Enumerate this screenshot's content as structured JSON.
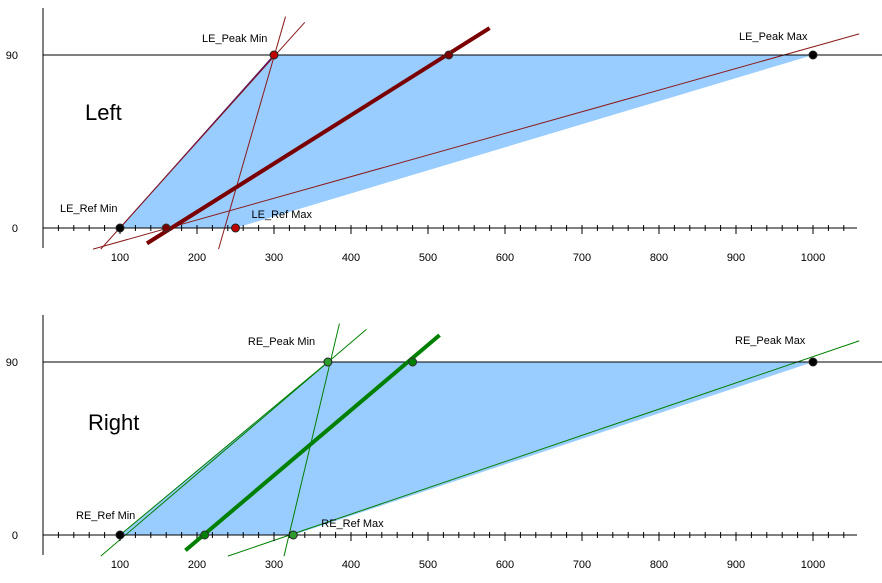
{
  "chart_data": [
    {
      "type": "area",
      "title": "Left",
      "xlim": [
        0,
        1050
      ],
      "ylim": [
        0,
        90
      ],
      "x_ticks": [
        100,
        200,
        300,
        400,
        500,
        600,
        700,
        800,
        900,
        1000
      ],
      "y_ticks": [
        0,
        90
      ],
      "colors": {
        "fill": "#99ccff",
        "line": "#7a0000",
        "thin": "#8b1a1a",
        "edge": "#4b0066"
      },
      "points": [
        {
          "label": "LE_Ref Min",
          "x": 100,
          "y": 0
        },
        {
          "label": "LE_Ref Max",
          "x": 250,
          "y": 0
        },
        {
          "label": "LE_Peak Min",
          "x": 300,
          "y": 90
        },
        {
          "label": "LE_Peak Max",
          "x": 1000,
          "y": 90
        }
      ],
      "trend_line": {
        "from": [
          135,
          -8
        ],
        "to": [
          580,
          104
        ],
        "markers": [
          [
            160,
            0
          ],
          [
            527,
            90
          ]
        ]
      },
      "thin_lines": [
        {
          "from": [
            75,
            -11
          ],
          "to": [
            340,
            107
          ]
        },
        {
          "from": [
            65,
            -11
          ],
          "to": [
            1060,
            101
          ]
        },
        {
          "from": [
            228,
            -11
          ],
          "to": [
            315,
            110
          ]
        }
      ]
    },
    {
      "type": "area",
      "title": "Right",
      "xlim": [
        0,
        1050
      ],
      "ylim": [
        0,
        90
      ],
      "x_ticks": [
        100,
        200,
        300,
        400,
        500,
        600,
        700,
        800,
        900,
        1000
      ],
      "y_ticks": [
        0,
        90
      ],
      "colors": {
        "fill": "#99ccff",
        "line": "#008000",
        "thin": "#008000",
        "edge": "#008000"
      },
      "points": [
        {
          "label": "RE_Ref Min",
          "x": 100,
          "y": 0
        },
        {
          "label": "RE_Ref Max",
          "x": 325,
          "y": 0
        },
        {
          "label": "RE_Peak Min",
          "x": 370,
          "y": 90
        },
        {
          "label": "RE_Peak Max",
          "x": 1000,
          "y": 90
        }
      ],
      "trend_line": {
        "from": [
          185,
          -8
        ],
        "to": [
          515,
          104
        ],
        "markers": [
          [
            210,
            0
          ],
          [
            480,
            90
          ]
        ]
      },
      "thin_lines": [
        {
          "from": [
            75,
            -11
          ],
          "to": [
            420,
            107
          ]
        },
        {
          "from": [
            240,
            -11
          ],
          "to": [
            1060,
            101
          ]
        },
        {
          "from": [
            313,
            -11
          ],
          "to": [
            385,
            110
          ]
        }
      ]
    }
  ]
}
